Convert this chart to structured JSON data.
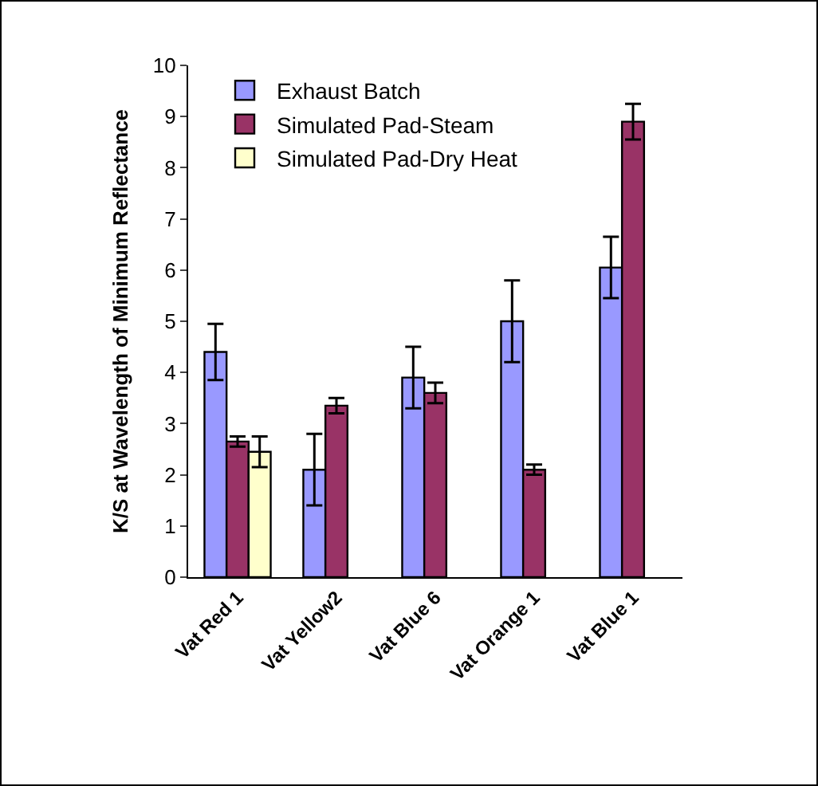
{
  "chart_data": {
    "type": "bar",
    "ylabel": "K/S at Wavelength of Minimum Reflectance",
    "categories": [
      "Vat Red 1",
      "Vat Yellow2",
      "Vat Blue 6",
      "Vat Orange 1",
      "Vat Blue 1"
    ],
    "series": [
      {
        "name": "Exhaust Batch",
        "color": "#9999ff",
        "values": [
          4.4,
          2.1,
          3.9,
          5.0,
          6.05
        ],
        "errors": [
          0.55,
          0.7,
          0.6,
          0.8,
          0.6
        ]
      },
      {
        "name": "Simulated Pad-Steam",
        "color": "#993366",
        "values": [
          2.65,
          3.35,
          3.6,
          2.1,
          8.9
        ],
        "errors": [
          0.1,
          0.15,
          0.2,
          0.1,
          0.35
        ]
      },
      {
        "name": "Simulated Pad-Dry Heat",
        "color": "#ffffcc",
        "values": [
          2.45,
          null,
          null,
          null,
          null
        ],
        "errors": [
          0.3,
          null,
          null,
          null,
          null
        ]
      }
    ],
    "ylim": [
      0,
      10
    ],
    "yticks": [
      0,
      1,
      2,
      3,
      4,
      5,
      6,
      7,
      8,
      9,
      10
    ],
    "grid": false,
    "legend": "top left"
  }
}
